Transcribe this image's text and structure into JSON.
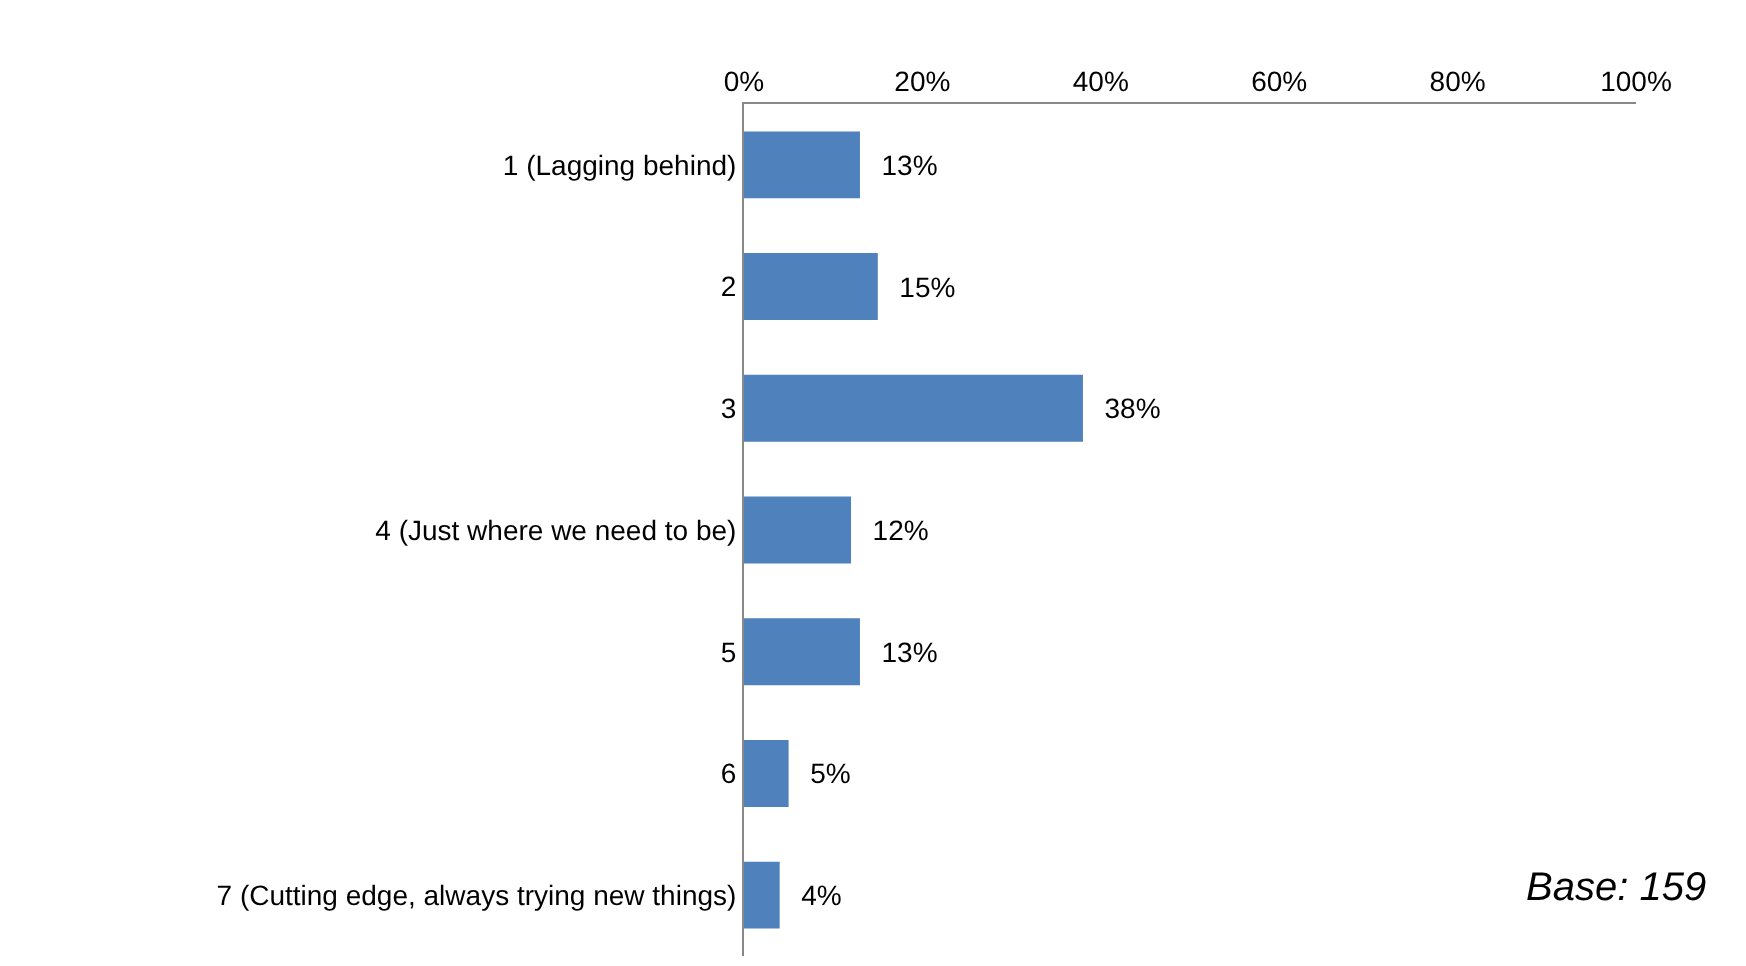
{
  "chart_data": {
    "type": "bar",
    "orientation": "horizontal",
    "categories": [
      "1 (Lagging behind)",
      "2",
      "3",
      "4 (Just where we need to be)",
      "5",
      "6",
      "7 (Cutting edge, always trying new things)"
    ],
    "values": [
      13,
      15,
      38,
      12,
      13,
      5,
      4
    ],
    "value_labels": [
      "13%",
      "15%",
      "38%",
      "12%",
      "13%",
      "5%",
      "4%"
    ],
    "color": "#4f81bd",
    "xlim": [
      0,
      100
    ],
    "xticks": [
      {
        "value": 0,
        "label": "0%"
      },
      {
        "value": 20,
        "label": "20%"
      },
      {
        "value": 40,
        "label": "40%"
      },
      {
        "value": 60,
        "label": "60%"
      },
      {
        "value": 80,
        "label": "80%"
      },
      {
        "value": 100,
        "label": "100%"
      }
    ],
    "grid": false,
    "annotations": [
      "Base: 159"
    ]
  }
}
